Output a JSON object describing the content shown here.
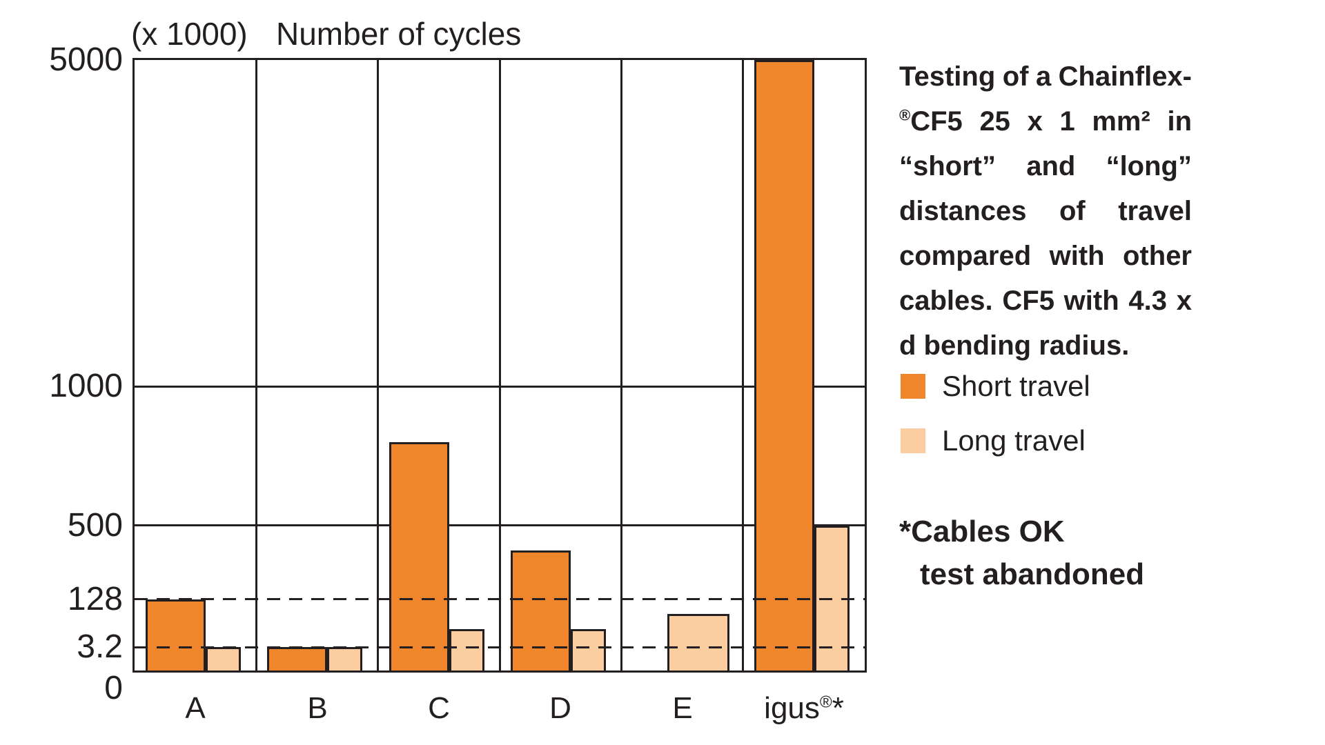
{
  "title": {
    "scale_note": "(x 1000)",
    "axis_title": "Number of cycles"
  },
  "description": {
    "lines": [
      {
        "justify": true,
        "words": [
          "Testing",
          "of",
          "a",
          "Chainflex-"
        ]
      },
      {
        "justify": true,
        "words": [
          "®CF5",
          "25",
          "x",
          "1",
          "mm²",
          "in"
        ]
      },
      {
        "justify": true,
        "words": [
          "“short”",
          "and",
          "“long”"
        ]
      },
      {
        "justify": true,
        "words": [
          "distances",
          "of",
          "travel"
        ]
      },
      {
        "justify": true,
        "words": [
          "compared",
          "with",
          "other"
        ]
      },
      {
        "justify": true,
        "words": [
          "cables.",
          "CF5",
          "with",
          "4.3",
          "x"
        ]
      },
      {
        "justify": false,
        "words": [
          "d",
          "bending",
          "radius."
        ]
      }
    ]
  },
  "legend": {
    "items": [
      {
        "label": "Short travel",
        "color": "#F0862B"
      },
      {
        "label": "Long travel",
        "color": "#FBCDA0"
      }
    ]
  },
  "footnote": {
    "line1": "*Cables OK",
    "line2": "test abandoned"
  },
  "colors": {
    "line": "#231f20",
    "short_travel": "#F0862B",
    "long_travel": "#FBCDA0"
  },
  "chart_data": {
    "type": "bar",
    "title": "Number of cycles",
    "ylabel": "(x 1000)",
    "categories": [
      "A",
      "B",
      "C",
      "D",
      "E",
      "igus®*"
    ],
    "series": [
      {
        "name": "Short travel",
        "color": "#F0862B",
        "values": [
          128,
          3.2,
          800,
          375,
          null,
          5000
        ]
      },
      {
        "name": "Long travel",
        "color": "#FBCDA0",
        "values": [
          3.2,
          3.2,
          50,
          50,
          90,
          500
        ]
      }
    ],
    "y_axis": {
      "unit": "x 1000 cycles",
      "ticks": [
        0,
        3.2,
        128,
        500,
        1000,
        5000
      ],
      "ylim": [
        0,
        5000
      ],
      "solid_gridlines": [
        500,
        1000
      ],
      "dashed_gridlines": [
        3.2,
        128
      ],
      "scale_anchors": [
        [
          0,
          0
        ],
        [
          3.2,
          0.0384
        ],
        [
          128,
          0.1164
        ],
        [
          500,
          0.2373
        ],
        [
          1000,
          0.4655
        ],
        [
          5000,
          1
        ]
      ]
    },
    "legend_position": "right",
    "grid": "column-dividers"
  }
}
